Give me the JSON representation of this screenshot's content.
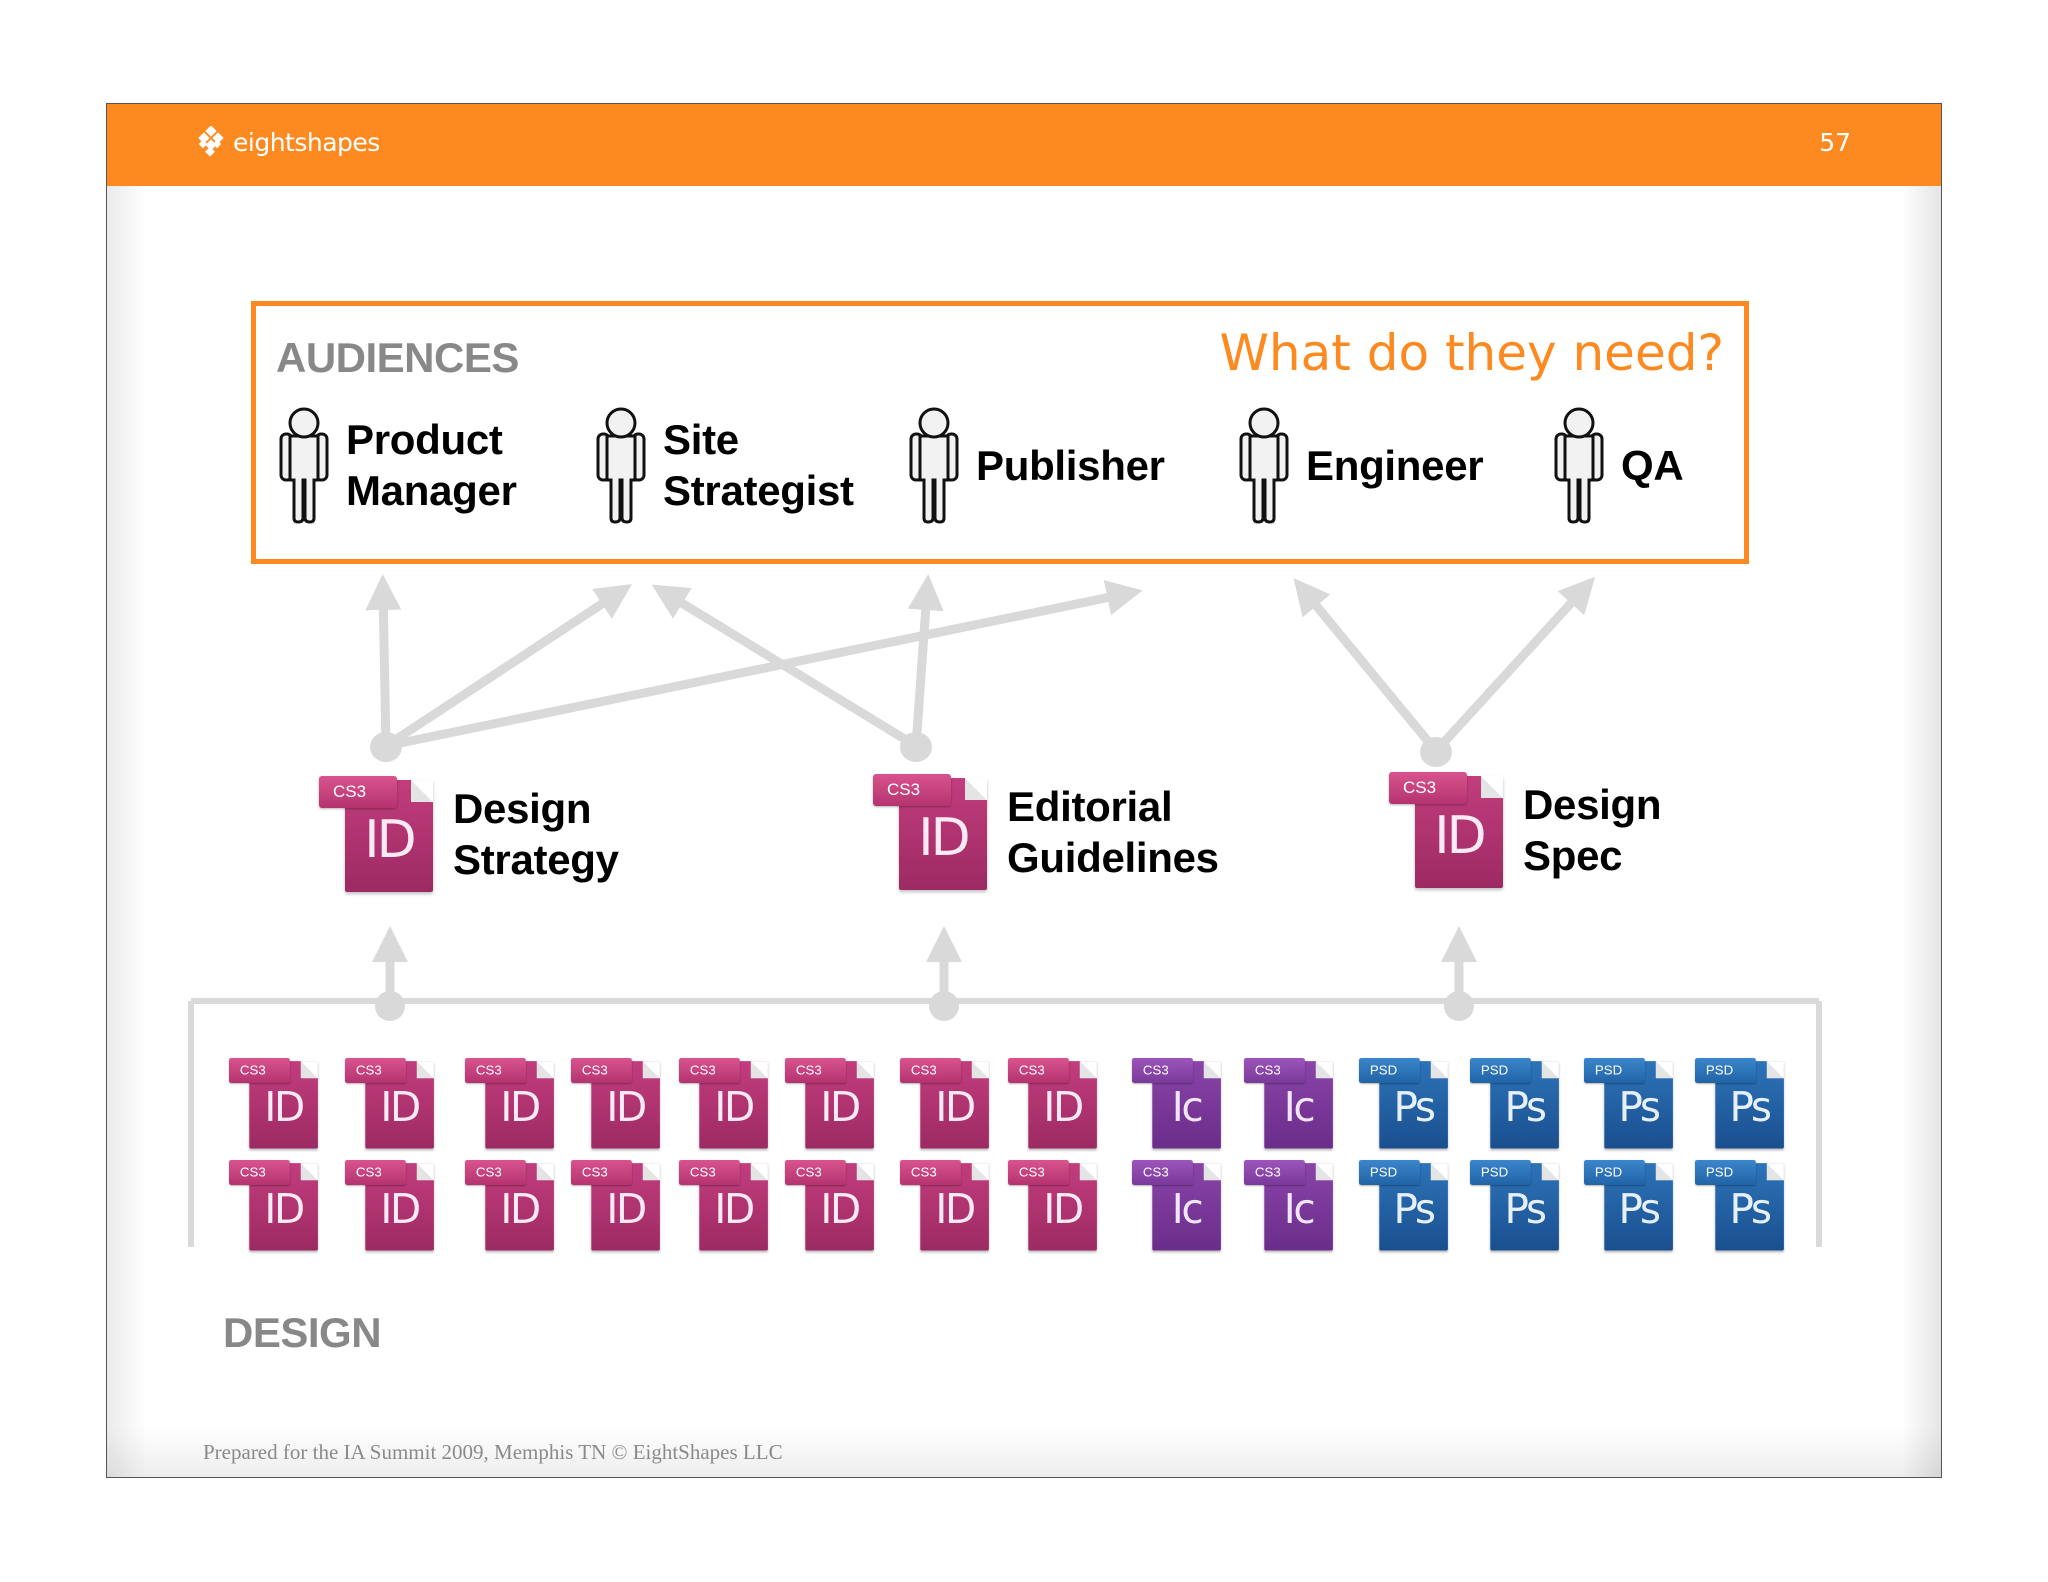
{
  "header": {
    "logo_text": "eightshapes",
    "page_number": "57",
    "color": "#fd8a21"
  },
  "audiences": {
    "title": "AUDIENCES",
    "question": "What do they need?",
    "people": [
      {
        "line1": "Product",
        "line2": "Manager",
        "icon": "person-icon"
      },
      {
        "line1": "Site",
        "line2": "Strategist",
        "icon": "person-icon"
      },
      {
        "line1": "Publisher",
        "line2": "",
        "icon": "person-icon"
      },
      {
        "line1": "Engineer",
        "line2": "",
        "icon": "person-icon"
      },
      {
        "line1": "QA",
        "line2": "",
        "icon": "person-icon"
      }
    ]
  },
  "deliverables": [
    {
      "line1": "Design",
      "line2": "Strategy",
      "icon": "indesign-cs3-file-icon",
      "badge": "CS3",
      "glyph": "ID"
    },
    {
      "line1": "Editorial",
      "line2": "Guidelines",
      "icon": "indesign-cs3-file-icon",
      "badge": "CS3",
      "glyph": "ID"
    },
    {
      "line1": "Design",
      "line2": "Spec",
      "icon": "indesign-cs3-file-icon",
      "badge": "CS3",
      "glyph": "ID"
    }
  ],
  "connections": [
    {
      "from": "Design Strategy",
      "to": [
        "Product Manager",
        "Site Strategist",
        "Publisher"
      ]
    },
    {
      "from": "Editorial Guidelines",
      "to": [
        "Site Strategist",
        "Publisher"
      ]
    },
    {
      "from": "Design Spec",
      "to": [
        "Engineer",
        "QA"
      ]
    }
  ],
  "design_files": {
    "label": "DESIGN",
    "rows": [
      [
        {
          "type": "id",
          "badge": "CS3",
          "glyph": "ID"
        },
        {
          "type": "id",
          "badge": "CS3",
          "glyph": "ID"
        },
        {
          "type": "id",
          "badge": "CS3",
          "glyph": "ID"
        },
        {
          "type": "id",
          "badge": "CS3",
          "glyph": "ID"
        },
        {
          "type": "id",
          "badge": "CS3",
          "glyph": "ID"
        },
        {
          "type": "id",
          "badge": "CS3",
          "glyph": "ID"
        },
        {
          "type": "id",
          "badge": "CS3",
          "glyph": "ID"
        },
        {
          "type": "id",
          "badge": "CS3",
          "glyph": "ID"
        },
        {
          "type": "ic",
          "badge": "CS3",
          "glyph": "Ic"
        },
        {
          "type": "ic",
          "badge": "CS3",
          "glyph": "Ic"
        },
        {
          "type": "ps",
          "badge": "PSD",
          "glyph": "Ps"
        },
        {
          "type": "ps",
          "badge": "PSD",
          "glyph": "Ps"
        },
        {
          "type": "ps",
          "badge": "PSD",
          "glyph": "Ps"
        },
        {
          "type": "ps",
          "badge": "PSD",
          "glyph": "Ps"
        }
      ],
      [
        {
          "type": "id",
          "badge": "CS3",
          "glyph": "ID"
        },
        {
          "type": "id",
          "badge": "CS3",
          "glyph": "ID"
        },
        {
          "type": "id",
          "badge": "CS3",
          "glyph": "ID"
        },
        {
          "type": "id",
          "badge": "CS3",
          "glyph": "ID"
        },
        {
          "type": "id",
          "badge": "CS3",
          "glyph": "ID"
        },
        {
          "type": "id",
          "badge": "CS3",
          "glyph": "ID"
        },
        {
          "type": "id",
          "badge": "CS3",
          "glyph": "ID"
        },
        {
          "type": "id",
          "badge": "CS3",
          "glyph": "ID"
        },
        {
          "type": "ic",
          "badge": "CS3",
          "glyph": "Ic"
        },
        {
          "type": "ic",
          "badge": "CS3",
          "glyph": "Ic"
        },
        {
          "type": "ps",
          "badge": "PSD",
          "glyph": "Ps"
        },
        {
          "type": "ps",
          "badge": "PSD",
          "glyph": "Ps"
        },
        {
          "type": "ps",
          "badge": "PSD",
          "glyph": "Ps"
        },
        {
          "type": "ps",
          "badge": "PSD",
          "glyph": "Ps"
        }
      ]
    ]
  },
  "footer": {
    "text": "Prepared for the IA Summit 2009, Memphis TN  © EightShapes LLC"
  },
  "colors": {
    "accent": "#fd8a21",
    "label_gray": "#888888",
    "arrow_gray": "#d9d9d9",
    "indesign": "#b0306e",
    "incopy": "#7a3a9a",
    "photoshop": "#1f5fa6"
  }
}
